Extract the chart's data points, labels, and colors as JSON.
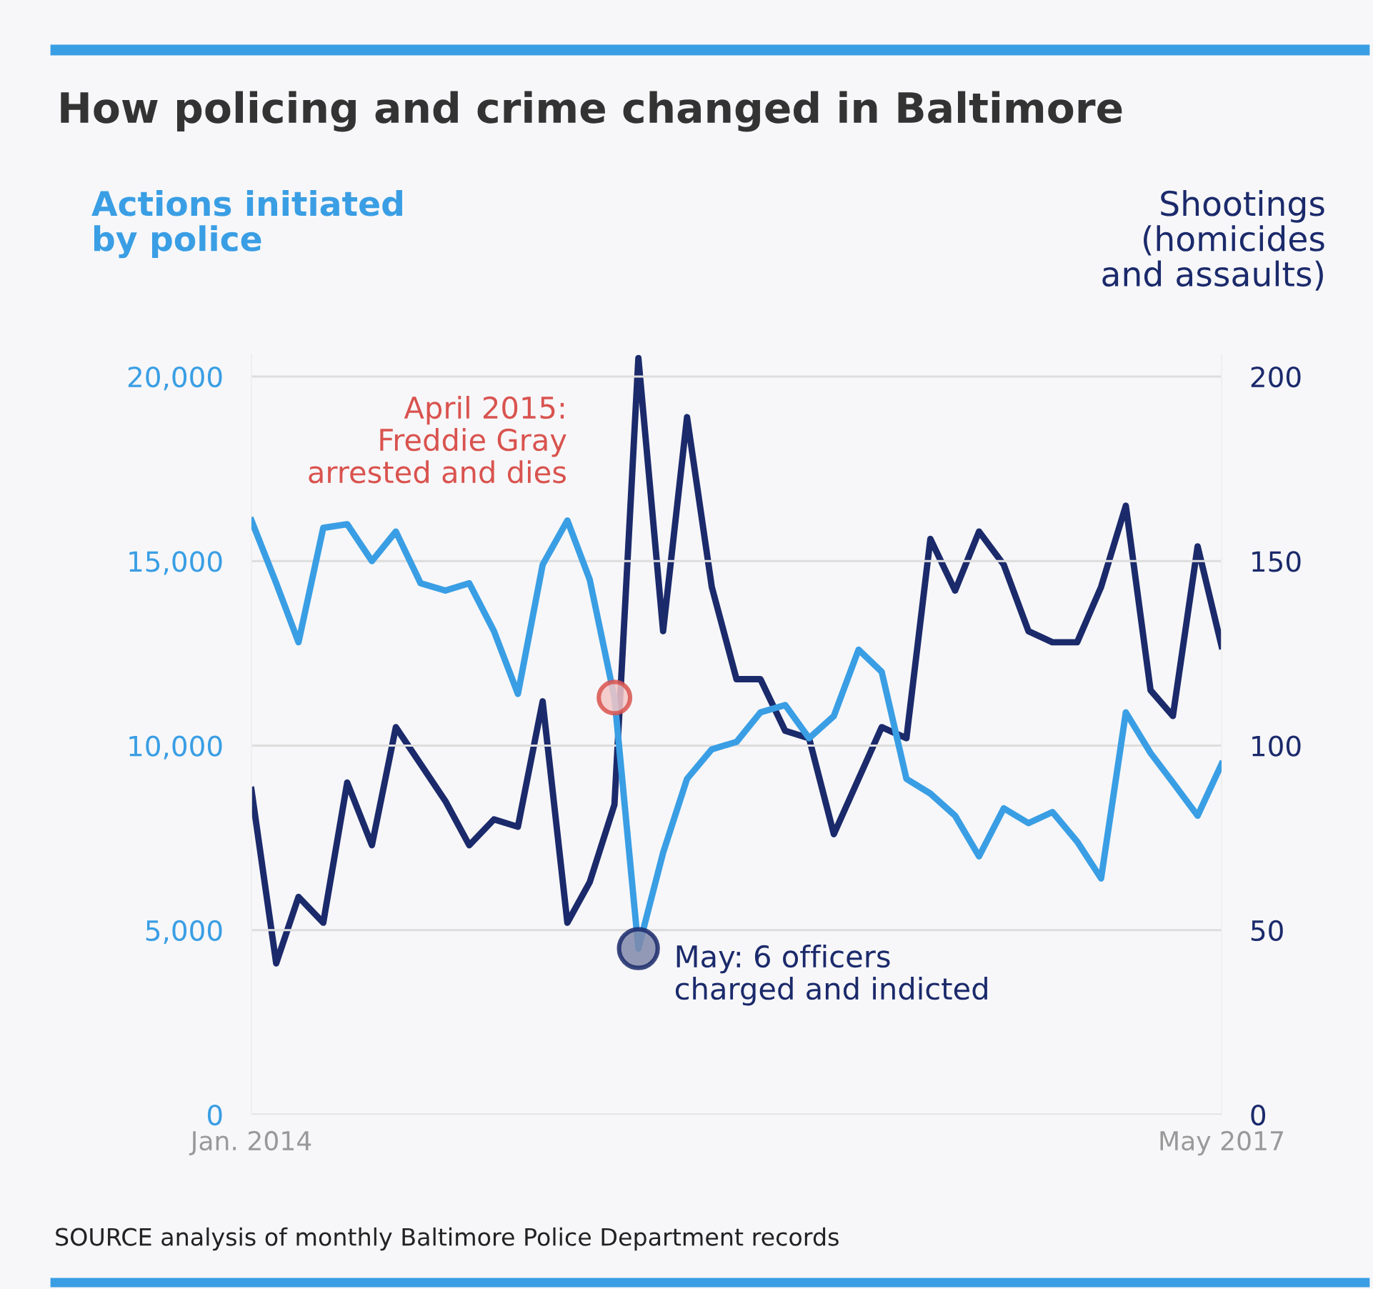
{
  "chart_data": {
    "type": "line",
    "title": "How policing and crime changed in Baltimore",
    "ylabel": "Actions initiated\nby police",
    "y2label": "Shootings\n(homicides\nand assaults)",
    "x": [
      "2014-01",
      "2014-02",
      "2014-03",
      "2014-04",
      "2014-05",
      "2014-06",
      "2014-07",
      "2014-08",
      "2014-09",
      "2014-10",
      "2014-11",
      "2014-12",
      "2015-01",
      "2015-02",
      "2015-03",
      "2015-04",
      "2015-05",
      "2015-06",
      "2015-07",
      "2015-08",
      "2015-09",
      "2015-10",
      "2015-11",
      "2015-12",
      "2016-01",
      "2016-02",
      "2016-03",
      "2016-04",
      "2016-05",
      "2016-06",
      "2016-07",
      "2016-08",
      "2016-09",
      "2016-10",
      "2016-11",
      "2016-12",
      "2017-01",
      "2017-02",
      "2017-03",
      "2017-04",
      "2017-05"
    ],
    "series": [
      {
        "color": "#3a9ee4",
        "values": [
          16100,
          14400,
          12800,
          15900,
          16000,
          15000,
          15800,
          14400,
          14200,
          14400,
          13100,
          11400,
          14900,
          16100,
          14500,
          11300,
          4500,
          7100,
          9100,
          9900,
          10100,
          10900,
          11100,
          10200,
          10800,
          12600,
          12000,
          9100,
          8700,
          8100,
          7000,
          8300,
          7900,
          8200,
          7400,
          6400,
          10900,
          9800,
          9000,
          8100,
          9500
        ]
      },
      {
        "color": "#1b2a6b",
        "axis": "y2",
        "values": [
          88,
          41,
          59,
          52,
          90,
          73,
          105,
          95,
          85,
          73,
          80,
          78,
          112,
          52,
          63,
          84,
          205,
          131,
          189,
          143,
          118,
          118,
          104,
          102,
          76,
          91,
          105,
          102,
          156,
          142,
          158,
          149,
          131,
          128,
          128,
          143,
          165,
          115,
          108,
          154,
          127
        ]
      }
    ],
    "xlim": [
      "2014-01",
      "2017-05"
    ],
    "xticks": [
      {
        "value": "2014-01",
        "label": "Jan. 2014"
      },
      {
        "value": "2017-05",
        "label": "May 2017"
      }
    ],
    "ylim": [
      0,
      20600
    ],
    "yticks": [
      0,
      {
        "value": 5000,
        "label": "5,000"
      },
      {
        "value": 10000,
        "label": "10,000"
      },
      {
        "value": 15000,
        "label": "15,000"
      },
      {
        "value": 20000,
        "label": "20,000"
      }
    ],
    "y2lim": [
      0,
      206
    ],
    "y2ticks": [
      0,
      50,
      100,
      150,
      200
    ],
    "grid": "y",
    "annotations": [
      "April 2015:\nFreddie Gray\narrested and dies",
      {
        "text": "May: 6 officers\ncharged and indicted",
        "x": "2015-05",
        "y": 4500
      },
      "SOURCE analysis of monthly Baltimore Police Department records"
    ]
  }
}
